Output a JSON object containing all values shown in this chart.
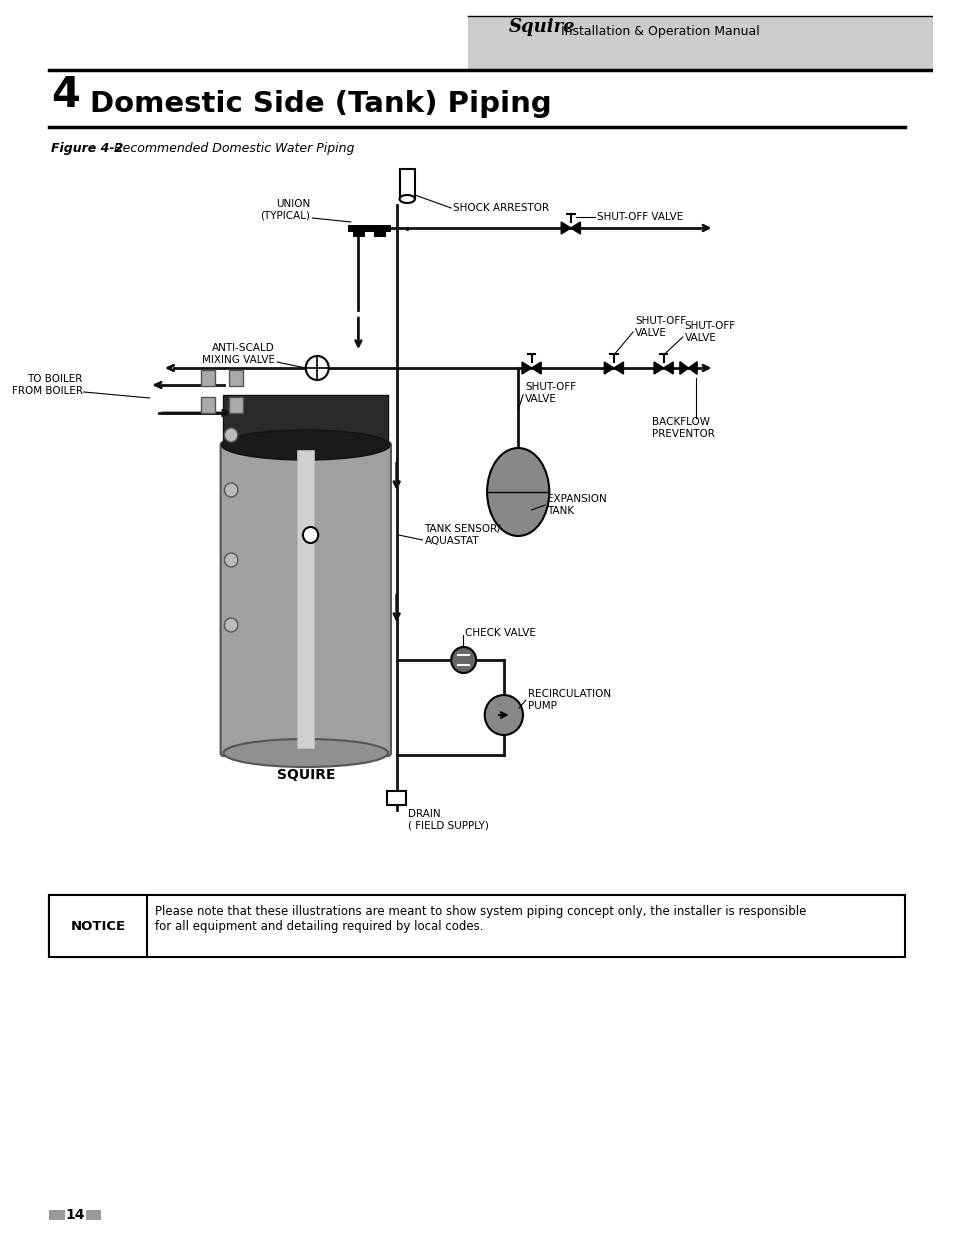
{
  "title_number": "4",
  "title_text": "Domestic Side (Tank) Piping",
  "header_label": "Squire",
  "header_subtitle": "Installation & Operation Manual",
  "figure_label": "Figure 4-2",
  "figure_caption": "Recommended Domestic Water Piping",
  "notice_label": "NOTICE",
  "notice_text": "Please note that these illustrations are meant to show system piping concept only, the installer is responsible\nfor all equipment and detailing required by local codes.",
  "page_number": "14",
  "bg_color": "#ffffff",
  "header_bg": "#cccccc",
  "tank_label": "SQUIRE",
  "drain_label": "DRAIN\n( FIELD SUPPLY)",
  "tank_sensor_label": "TANK SENSOR/\nAQUASTAT",
  "shock_arrestor_label": "SHOCK ARRESTOR",
  "union_label": "UNION\n(TYPICAL)",
  "shut_off_valve_label1": "SHUT-OFF VALVE",
  "shut_off_valve_label2": "SHUT-OFF\nVALVE",
  "shut_off_valve_label3": "SHUT-OFF\nVALVE",
  "shut_off_valve_label4": "SHUT-OFF\nVALVE",
  "anti_scald_label": "ANTI-SCALD\nMIXING VALVE",
  "to_boiler_label": "TO BOILER\nFROM BOILER",
  "expansion_tank_label": "EXPANSION\nTANK",
  "check_valve_label": "CHECK VALVE",
  "recirculation_pump_label": "RECIRCULATION\nPUMP",
  "backflow_label": "BACKFLOW\nPREVENTOR"
}
